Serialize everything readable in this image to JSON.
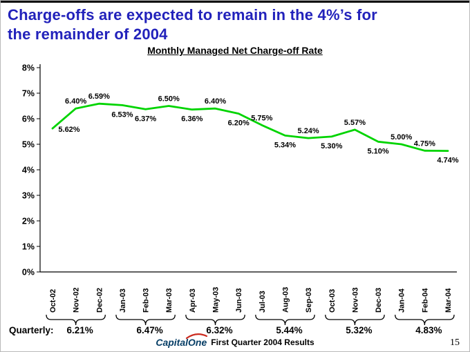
{
  "slide": {
    "title_line1": "Charge-offs are expected to remain in the 4%’s for",
    "title_line2": "the remainder of 2004",
    "page_number": "15"
  },
  "chart_data": {
    "type": "line",
    "title": "Monthly Managed Net Charge-off Rate",
    "categories": [
      "Oct-02",
      "Nov-02",
      "Dec-02",
      "Jan-03",
      "Feb-03",
      "Mar-03",
      "Apr-03",
      "May-03",
      "Jun-03",
      "Jul-03",
      "Aug-03",
      "Sep-03",
      "Oct-03",
      "Nov-03",
      "Dec-03",
      "Jan-04",
      "Feb-04",
      "Mar-04"
    ],
    "values": [
      5.62,
      6.4,
      6.59,
      6.53,
      6.37,
      6.5,
      6.36,
      6.4,
      6.2,
      5.75,
      5.34,
      5.24,
      5.3,
      5.57,
      5.1,
      5.0,
      4.75,
      4.74
    ],
    "value_labels": [
      "5.62%",
      "6.40%",
      "6.59%",
      "6.53%",
      "6.37%",
      "6.50%",
      "6.36%",
      "6.40%",
      "6.20%",
      "5.75%",
      "5.34%",
      "5.24%",
      "5.30%",
      "5.57%",
      "5.10%",
      "5.00%",
      "4.75%",
      "4.74%"
    ],
    "label_position": [
      "right",
      "above",
      "above",
      "below",
      "below",
      "above",
      "below",
      "above",
      "below",
      "above",
      "below",
      "above",
      "below",
      "above",
      "below",
      "above",
      "above",
      "below"
    ],
    "xlabel": "",
    "ylabel": "",
    "ylim": [
      0,
      8
    ],
    "ytick_labels": [
      "0%",
      "1%",
      "2%",
      "3%",
      "4%",
      "5%",
      "6%",
      "7%",
      "8%"
    ],
    "grid": false,
    "legend": "none",
    "line_color": "#00d400"
  },
  "quarterly": {
    "label": "Quarterly:",
    "values": [
      "6.21%",
      "6.47%",
      "6.32%",
      "5.44%",
      "5.32%",
      "4.83%"
    ]
  },
  "footer": {
    "logo_capital": "Capital",
    "logo_one": "One",
    "text": "First Quarter 2004 Results"
  },
  "colors": {
    "title_blue": "#2222bb",
    "line_green": "#00d400",
    "logo_blue": "#073e66",
    "logo_red": "#cc2a1e",
    "axis_black": "#000000"
  }
}
